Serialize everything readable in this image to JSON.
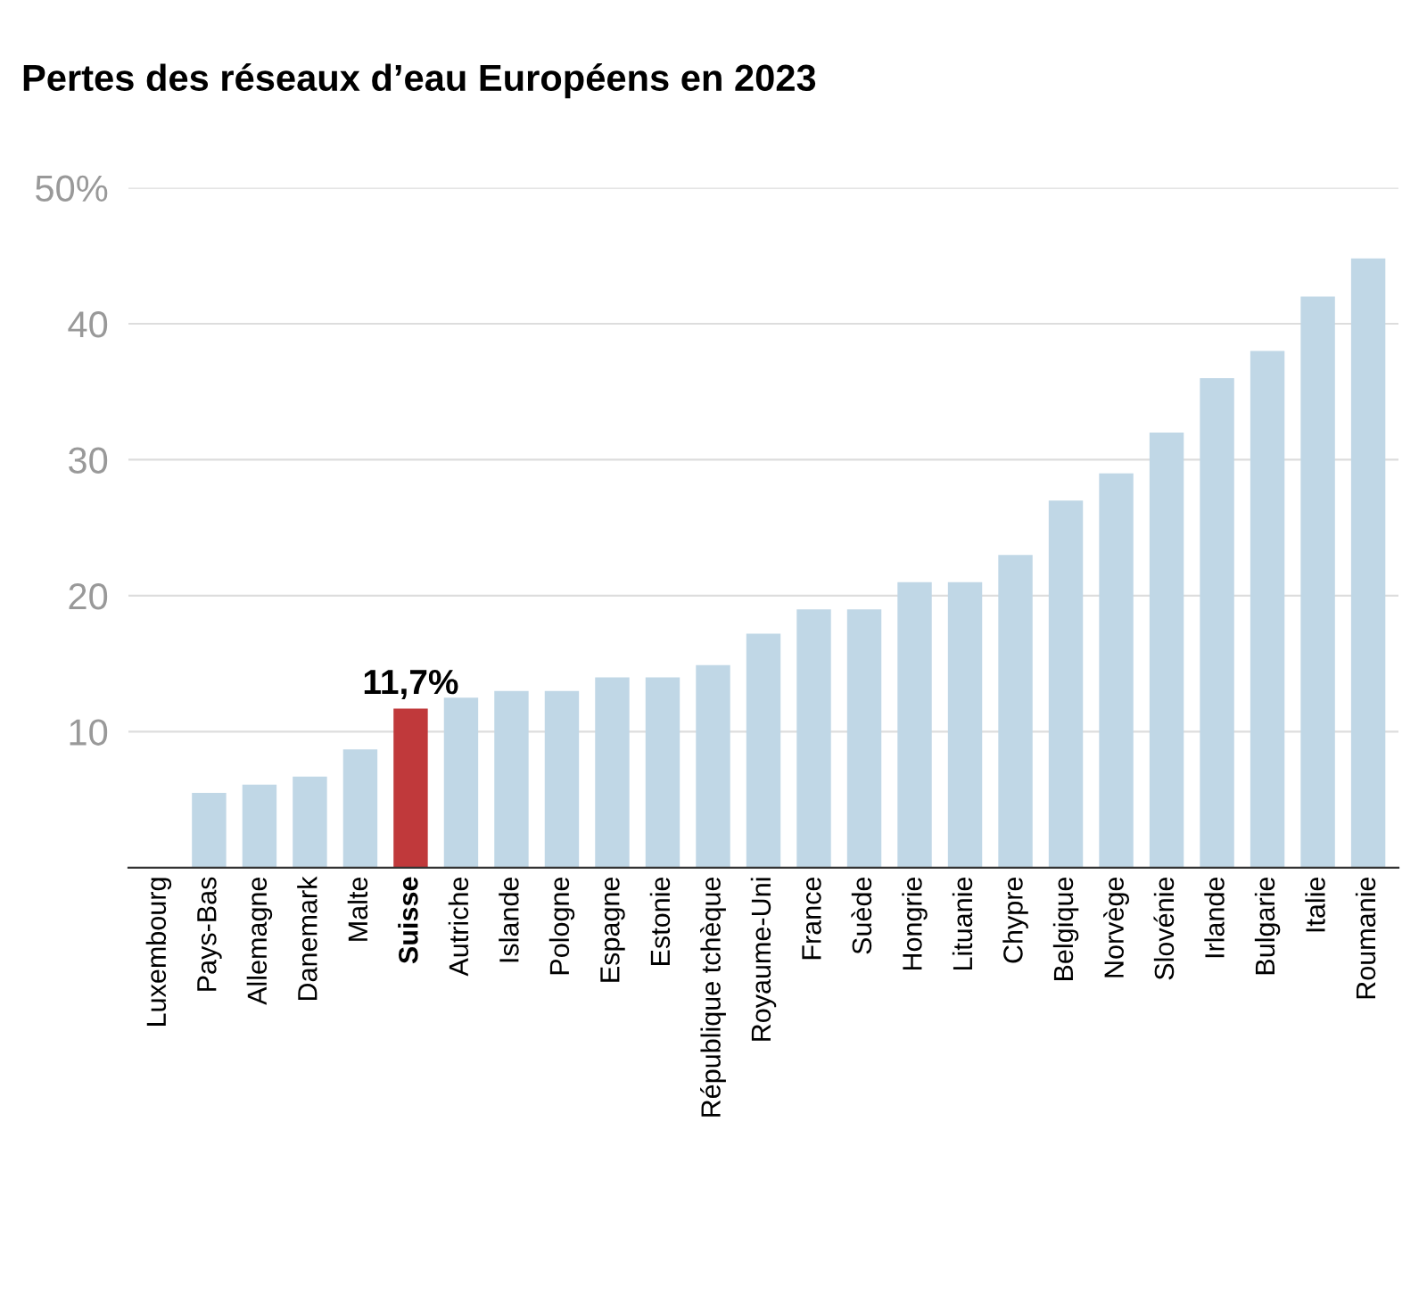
{
  "chart_data": {
    "type": "bar",
    "title": "Pertes des réseaux d’eau Européens en 2023",
    "categories": [
      "Luxembourg",
      "Pays-Bas",
      "Allemagne",
      "Danemark",
      "Malte",
      "Suisse",
      "Autriche",
      "Islande",
      "Pologne",
      "Espagne",
      "Estonie",
      "République tchèque",
      "Royaume-Uni",
      "France",
      "Suède",
      "Hongrie",
      "Lituanie",
      "Chypre",
      "Belgique",
      "Norvège",
      "Slovénie",
      "Irlande",
      "Bulgarie",
      "Italie",
      "Roumanie"
    ],
    "values": [
      0,
      5.5,
      6.1,
      6.7,
      8.7,
      11.7,
      12.5,
      13,
      13,
      14,
      14,
      14.9,
      17.2,
      19,
      19,
      21,
      21,
      23,
      27,
      29,
      32,
      36,
      38,
      42,
      44.8
    ],
    "colors": [
      "#c0d7e6",
      "#c0d7e6",
      "#c0d7e6",
      "#c0d7e6",
      "#c0d7e6",
      "#c0393b",
      "#c0d7e6",
      "#c0d7e6",
      "#c0d7e6",
      "#c0d7e6",
      "#c0d7e6",
      "#c0d7e6",
      "#c0d7e6",
      "#c0d7e6",
      "#c0d7e6",
      "#c0d7e6",
      "#c0d7e6",
      "#c0d7e6",
      "#c0d7e6",
      "#c0d7e6",
      "#c0d7e6",
      "#c0d7e6",
      "#c0d7e6",
      "#c0d7e6",
      "#c0d7e6"
    ],
    "value_labels": [
      null,
      null,
      null,
      null,
      null,
      "11,7%",
      null,
      null,
      null,
      null,
      null,
      null,
      null,
      null,
      null,
      null,
      null,
      null,
      null,
      null,
      null,
      null,
      null,
      null,
      null
    ],
    "ylim": [
      0,
      50
    ],
    "yticks": [
      10,
      20,
      30,
      40,
      {
        "value": 50,
        "label": "50%"
      }
    ],
    "grid": "y"
  }
}
